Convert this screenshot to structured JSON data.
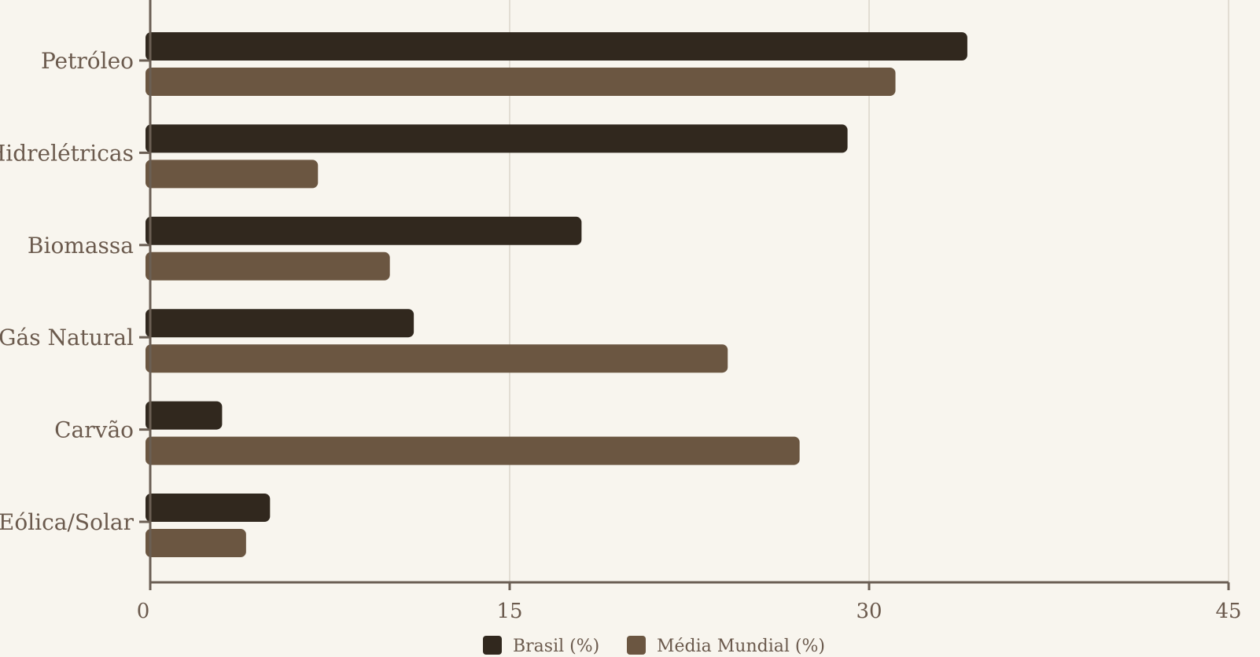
{
  "chart_data": {
    "type": "bar",
    "orientation": "horizontal",
    "categories": [
      "Petróleo",
      "Hidrelétricas",
      "Biomassa",
      "Gás Natural",
      "Carvão",
      "Eólica/Solar"
    ],
    "series": [
      {
        "name": "Brasil (%)",
        "values": [
          34.1,
          29.1,
          18.0,
          11.0,
          3.0,
          5.0
        ],
        "color": "#31281e"
      },
      {
        "name": "Média Mundial (%)",
        "values": [
          31.1,
          7.0,
          10.0,
          24.1,
          27.1,
          4.0
        ],
        "color": "#6b5641"
      }
    ],
    "x_ticks": [
      "0",
      "15",
      "30",
      "45"
    ],
    "xlim": [
      0,
      45
    ],
    "grid": "vertical",
    "legend_position": "bottom-center",
    "colors": {
      "background": "#f8f5ee",
      "axis": "#6b5f54",
      "grid": "#e2ddd3",
      "text": "#6b5a4d"
    }
  }
}
